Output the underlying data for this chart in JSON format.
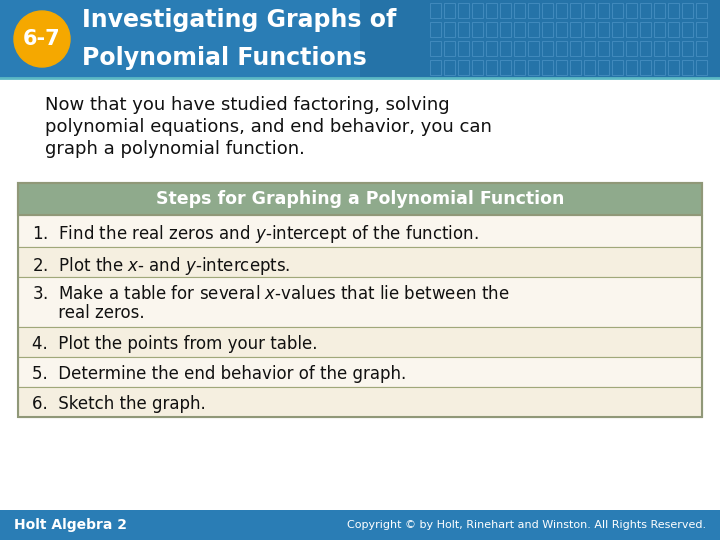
{
  "title_number": "6-7",
  "title_line1": "Investigating Graphs of",
  "title_line2": "Polynomial Functions",
  "header_bg_left": "#2a7db5",
  "header_bg_right": "#1a5f8a",
  "header_text_color": "#ffffff",
  "badge_color": "#f5a800",
  "badge_text_color": "#ffffff",
  "intro_text_line1": "Now that you have studied factoring, solving",
  "intro_text_line2": "polynomial equations, and end behavior, you can",
  "intro_text_line3": "graph a polynomial function.",
  "table_title": "Steps for Graphing a Polynomial Function",
  "table_title_bg": "#8faa8c",
  "table_title_text_color": "#ffffff",
  "table_bg_alt1": "#faf6ee",
  "table_bg_alt2": "#f5efe0",
  "table_border_color": "#a0a87a",
  "table_outer_border": "#909878",
  "steps": [
    "1.  Find the real zeros and $y$-intercept of the function.",
    "2.  Plot the $x$- and $y$-intercepts.",
    "3.  Make a table for several $x$-values that lie between the\n     real zeros.",
    "4.  Plot the points from your table.",
    "5.  Determine the end behavior of the graph.",
    "6.  Sketch the graph."
  ],
  "footer_bg": "#2a7db5",
  "footer_left": "Holt Algebra 2",
  "footer_right": "Copyright © by Holt, Rinehart and Winston. All Rights Reserved.",
  "footer_text_color": "#ffffff",
  "bg_color": "#ffffff",
  "grid_color": "#5090c0"
}
